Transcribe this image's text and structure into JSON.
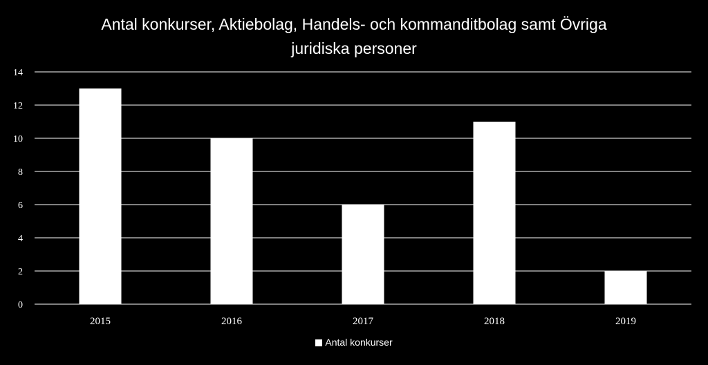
{
  "chart_data": {
    "type": "bar",
    "title_lines": [
      "Antal konkurser, Aktiebolag, Handels- och kommanditbolag samt Övriga",
      "juridiska personer"
    ],
    "categories": [
      "2015",
      "2016",
      "2017",
      "2018",
      "2019"
    ],
    "series": [
      {
        "name": "Antal konkurser",
        "values": [
          13,
          10,
          6,
          11,
          2
        ]
      }
    ],
    "y_ticks": [
      0,
      2,
      4,
      6,
      8,
      10,
      12,
      14
    ],
    "ylim": [
      0,
      14
    ],
    "grid": true,
    "legend_position": "bottom",
    "colors": {
      "background": "#000000",
      "bar": "#ffffff",
      "grid": "#ffffff",
      "text": "#ffffff"
    }
  }
}
